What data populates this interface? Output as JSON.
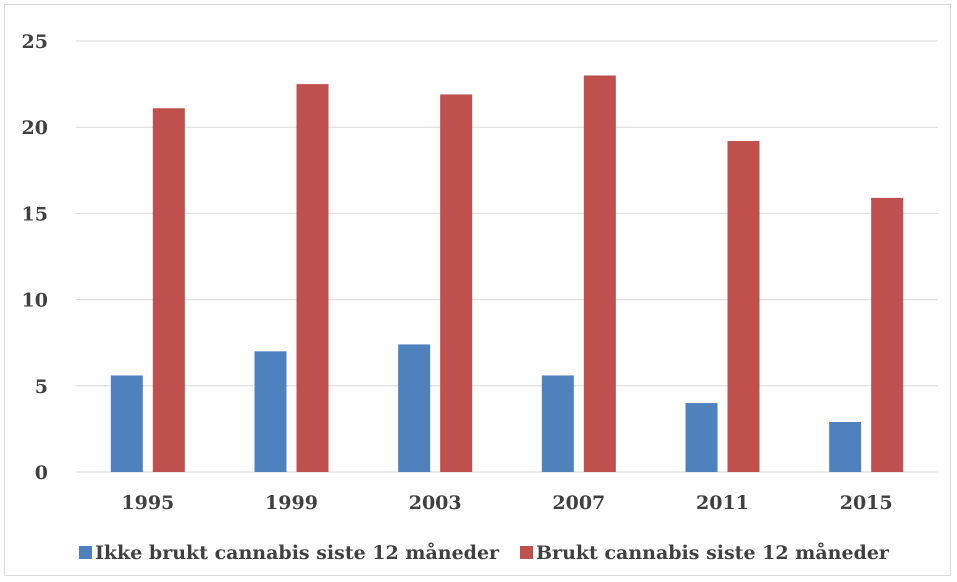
{
  "chart_data": {
    "type": "bar",
    "categories": [
      "1995",
      "1999",
      "2003",
      "2007",
      "2011",
      "2015"
    ],
    "series": [
      {
        "name": "Ikke brukt cannabis siste 12 måneder",
        "values": [
          5.6,
          7.0,
          7.4,
          5.6,
          4.0,
          2.9
        ],
        "color": "#4f81bd"
      },
      {
        "name": "Brukt cannabis siste 12 måneder",
        "values": [
          21.1,
          22.5,
          21.9,
          23.0,
          19.2,
          15.9
        ],
        "color": "#c0504d"
      }
    ],
    "ylim": [
      0,
      25
    ],
    "yticks": [
      "0",
      "5",
      "10",
      "15",
      "20",
      "25"
    ],
    "grid": true,
    "legend_position": "bottom",
    "title": "",
    "xlabel": "",
    "ylabel": ""
  }
}
